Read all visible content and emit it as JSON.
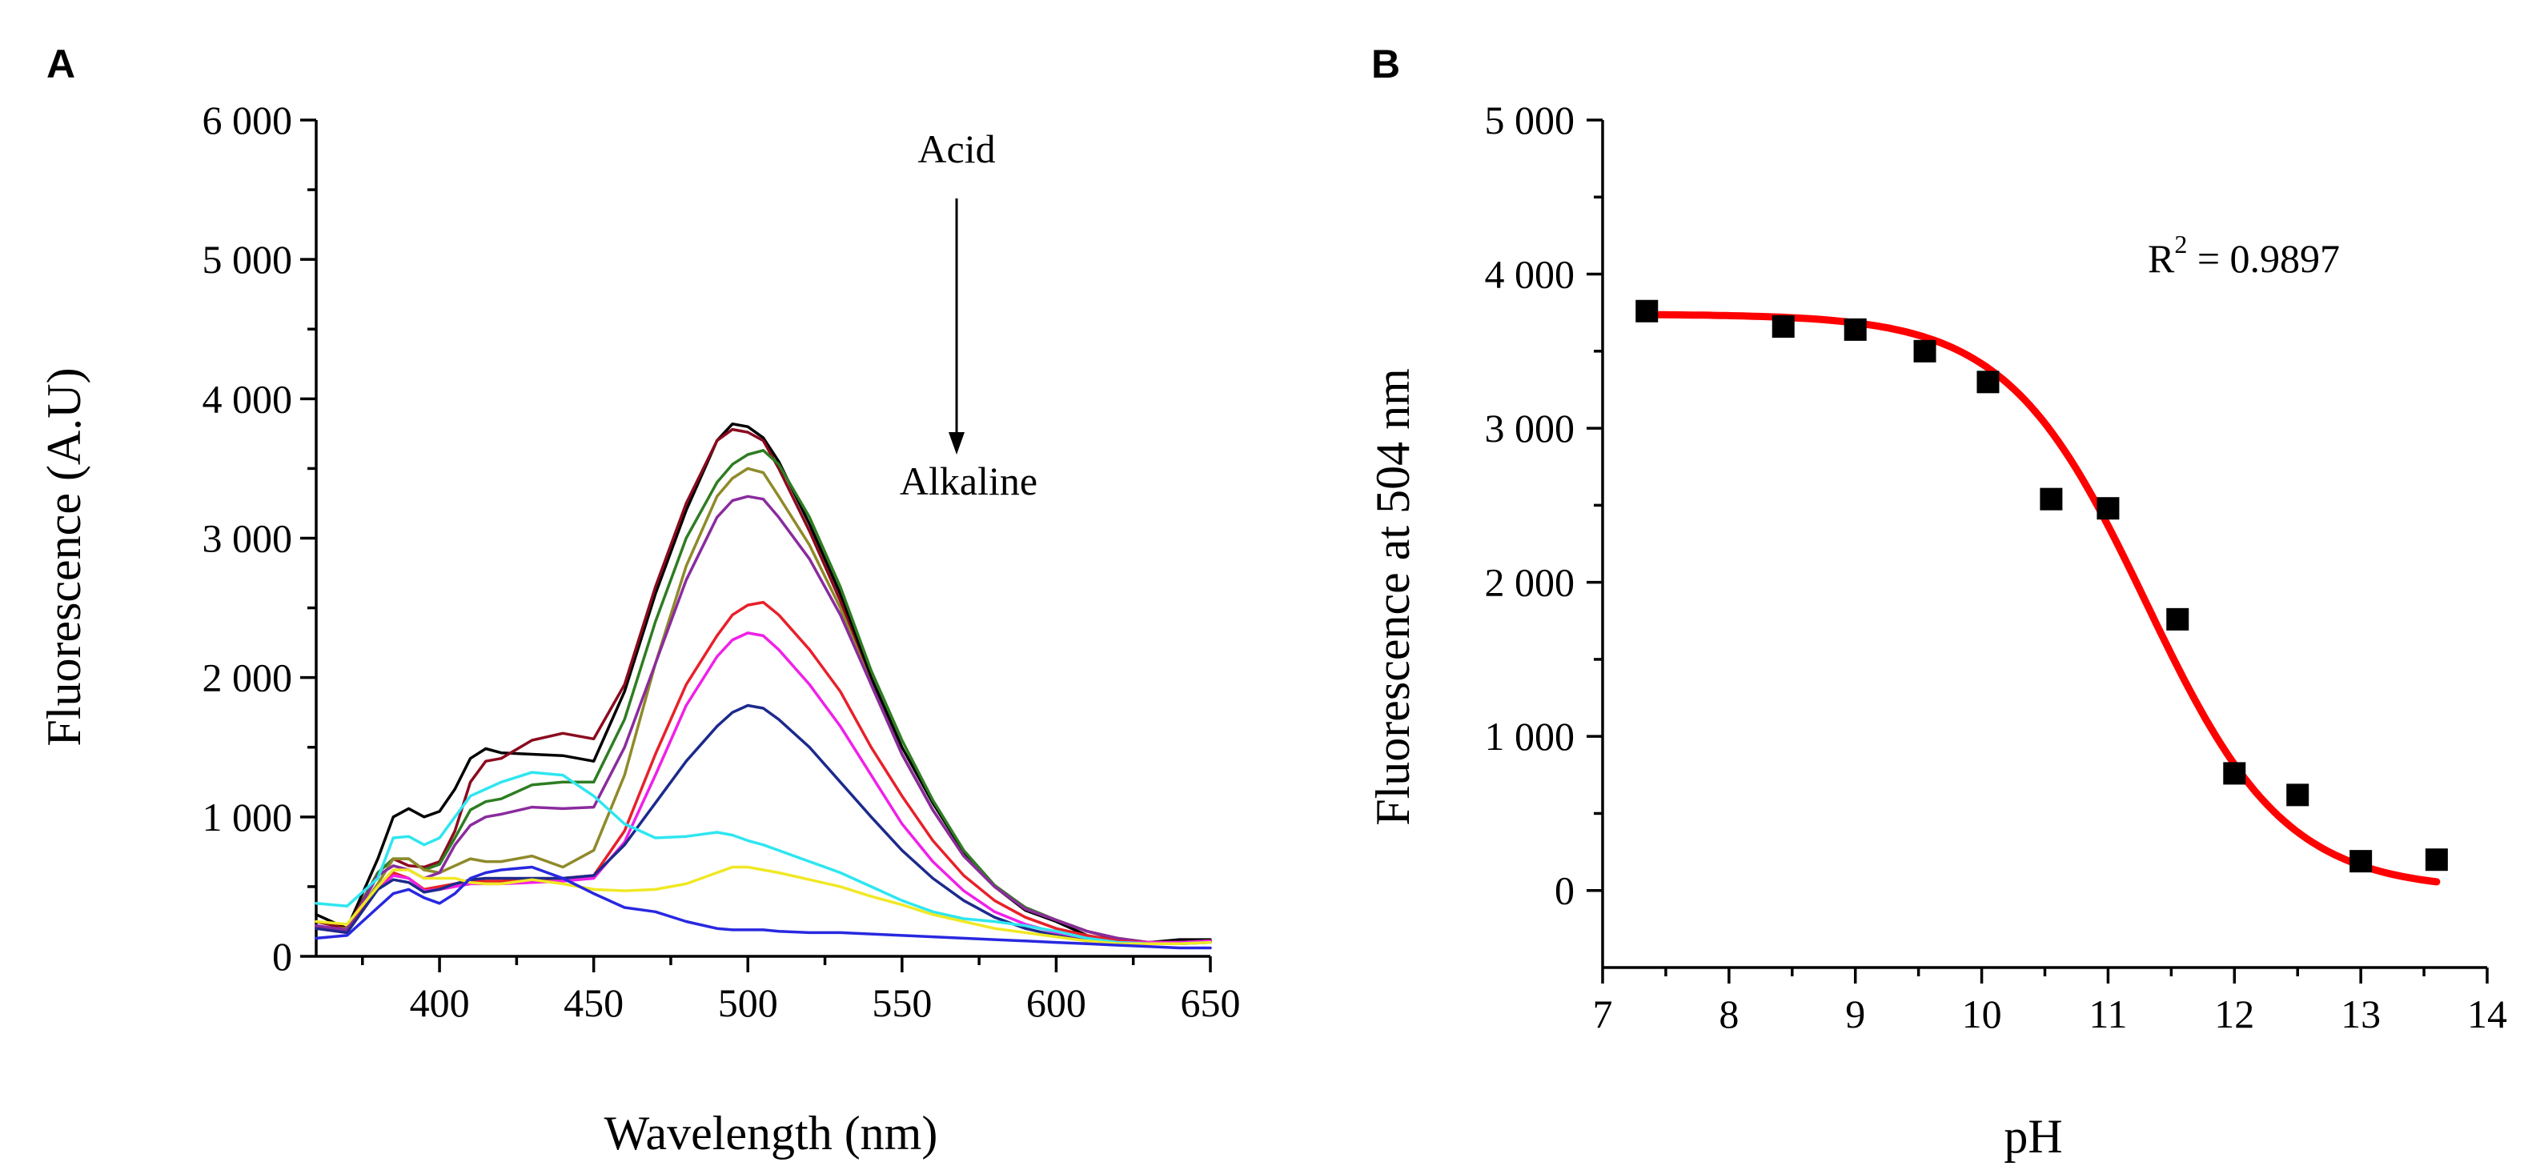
{
  "chart_data": [
    {
      "panel_label": "A",
      "type": "line",
      "xlabel": "Wavelength (nm)",
      "ylabel": "Fluorescence (A.U)",
      "xlim": [
        360,
        650
      ],
      "ylim": [
        0,
        6000
      ],
      "xticks": [
        400,
        450,
        500,
        550,
        600,
        650
      ],
      "yticks": [
        0,
        1000,
        2000,
        3000,
        4000,
        5000,
        6000
      ],
      "xtick_labels": [
        "400",
        "450",
        "500",
        "550",
        "600",
        "650"
      ],
      "ytick_labels": [
        "0",
        "1 000",
        "2 000",
        "3 000",
        "4 000",
        "5 000",
        "6 000"
      ],
      "annotation_top": "Acid",
      "annotation_bottom": "Alkaline",
      "series": [
        {
          "name": "black",
          "color": "#000000",
          "x": [
            360,
            370,
            380,
            385,
            390,
            395,
            400,
            405,
            410,
            415,
            420,
            430,
            440,
            450,
            460,
            470,
            480,
            490,
            495,
            500,
            505,
            510,
            520,
            530,
            540,
            550,
            560,
            570,
            580,
            590,
            600,
            610,
            620,
            630,
            640,
            650
          ],
          "values": [
            300,
            200,
            700,
            1000,
            1060,
            1000,
            1040,
            1200,
            1420,
            1490,
            1460,
            1450,
            1440,
            1400,
            1900,
            2600,
            3200,
            3700,
            3820,
            3800,
            3720,
            3550,
            3100,
            2600,
            2000,
            1500,
            1100,
            750,
            500,
            330,
            250,
            150,
            100,
            100,
            120,
            120
          ]
        },
        {
          "name": "dark red",
          "color": "#8b0a1e",
          "x": [
            360,
            370,
            380,
            385,
            390,
            395,
            400,
            405,
            410,
            415,
            420,
            430,
            440,
            450,
            460,
            470,
            480,
            490,
            495,
            500,
            505,
            510,
            520,
            530,
            540,
            550,
            560,
            570,
            580,
            590,
            600,
            610,
            620,
            630,
            640,
            650
          ],
          "values": [
            250,
            200,
            600,
            700,
            650,
            640,
            680,
            900,
            1250,
            1400,
            1420,
            1550,
            1600,
            1560,
            1950,
            2650,
            3250,
            3700,
            3780,
            3760,
            3700,
            3500,
            3050,
            2550,
            1950,
            1450,
            1050,
            720,
            500,
            350,
            260,
            180,
            120,
            100,
            100,
            110
          ]
        },
        {
          "name": "green",
          "color": "#2e7d22",
          "x": [
            360,
            370,
            380,
            385,
            390,
            395,
            400,
            405,
            410,
            415,
            420,
            430,
            440,
            450,
            460,
            470,
            480,
            490,
            495,
            500,
            505,
            510,
            520,
            530,
            540,
            550,
            560,
            570,
            580,
            590,
            600,
            610,
            620,
            630,
            640,
            650
          ],
          "values": [
            220,
            180,
            600,
            700,
            700,
            620,
            660,
            850,
            1050,
            1110,
            1130,
            1230,
            1250,
            1250,
            1700,
            2400,
            3000,
            3400,
            3530,
            3600,
            3630,
            3530,
            3150,
            2650,
            2050,
            1550,
            1120,
            760,
            510,
            350,
            260,
            180,
            130,
            100,
            100,
            110
          ]
        },
        {
          "name": "olive",
          "color": "#8f8a2a",
          "x": [
            360,
            370,
            380,
            385,
            390,
            395,
            400,
            405,
            410,
            415,
            420,
            430,
            440,
            450,
            460,
            470,
            480,
            490,
            495,
            500,
            505,
            510,
            520,
            530,
            540,
            550,
            560,
            570,
            580,
            590,
            600,
            610,
            620,
            630,
            640,
            650
          ],
          "values": [
            200,
            200,
            520,
            700,
            700,
            620,
            600,
            650,
            700,
            680,
            680,
            720,
            640,
            760,
            1300,
            2100,
            2800,
            3300,
            3430,
            3500,
            3470,
            3300,
            2950,
            2500,
            1950,
            1450,
            1050,
            720,
            500,
            340,
            260,
            180,
            130,
            100,
            100,
            110
          ]
        },
        {
          "name": "purple",
          "color": "#8a2b9e",
          "x": [
            360,
            370,
            380,
            385,
            390,
            395,
            400,
            405,
            410,
            415,
            420,
            430,
            440,
            450,
            460,
            470,
            480,
            490,
            495,
            500,
            505,
            510,
            520,
            530,
            540,
            550,
            560,
            570,
            580,
            590,
            600,
            610,
            620,
            630,
            640,
            650
          ],
          "values": [
            220,
            190,
            580,
            650,
            620,
            560,
            600,
            800,
            940,
            1000,
            1020,
            1070,
            1060,
            1070,
            1500,
            2100,
            2700,
            3150,
            3270,
            3300,
            3280,
            3150,
            2850,
            2450,
            1950,
            1450,
            1050,
            720,
            500,
            340,
            260,
            180,
            130,
            100,
            100,
            110
          ]
        },
        {
          "name": "red",
          "color": "#e8202a",
          "x": [
            360,
            370,
            380,
            385,
            390,
            395,
            400,
            405,
            410,
            415,
            420,
            430,
            440,
            450,
            460,
            470,
            480,
            490,
            495,
            500,
            505,
            510,
            520,
            530,
            540,
            550,
            560,
            570,
            580,
            590,
            600,
            610,
            620,
            630,
            640,
            650
          ],
          "values": [
            200,
            170,
            500,
            600,
            560,
            480,
            500,
            520,
            540,
            540,
            540,
            550,
            560,
            580,
            900,
            1450,
            1950,
            2300,
            2450,
            2520,
            2540,
            2450,
            2200,
            1900,
            1500,
            1150,
            830,
            580,
            400,
            280,
            200,
            150,
            110,
            100,
            100,
            110
          ]
        },
        {
          "name": "magenta",
          "color": "#f020e8",
          "x": [
            360,
            370,
            380,
            385,
            390,
            395,
            400,
            405,
            410,
            415,
            420,
            430,
            440,
            450,
            460,
            470,
            480,
            490,
            495,
            500,
            505,
            510,
            520,
            530,
            540,
            550,
            560,
            570,
            580,
            590,
            600,
            610,
            620,
            630,
            640,
            650
          ],
          "values": [
            200,
            170,
            480,
            580,
            560,
            470,
            480,
            500,
            520,
            520,
            520,
            530,
            540,
            560,
            820,
            1300,
            1800,
            2150,
            2270,
            2320,
            2300,
            2200,
            1950,
            1650,
            1300,
            950,
            680,
            470,
            320,
            230,
            170,
            130,
            100,
            100,
            100,
            110
          ]
        },
        {
          "name": "navy",
          "color": "#1c2a8c",
          "x": [
            360,
            370,
            380,
            385,
            390,
            395,
            400,
            405,
            410,
            415,
            420,
            430,
            440,
            450,
            460,
            470,
            480,
            490,
            495,
            500,
            505,
            510,
            520,
            530,
            540,
            550,
            560,
            570,
            580,
            590,
            600,
            610,
            620,
            630,
            640,
            650
          ],
          "values": [
            200,
            170,
            480,
            550,
            530,
            460,
            480,
            520,
            550,
            560,
            560,
            560,
            560,
            580,
            800,
            1100,
            1400,
            1650,
            1750,
            1800,
            1780,
            1700,
            1500,
            1250,
            1000,
            760,
            560,
            400,
            280,
            200,
            150,
            110,
            100,
            90,
            90,
            100
          ]
        },
        {
          "name": "cyan",
          "color": "#2ee6f0",
          "x": [
            360,
            370,
            380,
            385,
            390,
            395,
            400,
            405,
            410,
            415,
            420,
            430,
            440,
            450,
            460,
            470,
            480,
            490,
            495,
            500,
            505,
            510,
            520,
            530,
            540,
            550,
            560,
            570,
            580,
            590,
            600,
            610,
            620,
            630,
            640,
            650
          ],
          "values": [
            380,
            360,
            560,
            850,
            860,
            800,
            850,
            1000,
            1150,
            1200,
            1250,
            1320,
            1300,
            1150,
            950,
            850,
            860,
            890,
            870,
            830,
            800,
            760,
            680,
            600,
            500,
            400,
            320,
            270,
            250,
            220,
            180,
            130,
            100,
            90,
            90,
            100
          ]
        },
        {
          "name": "yellow",
          "color": "#f0e824",
          "x": [
            360,
            370,
            380,
            385,
            390,
            395,
            400,
            405,
            410,
            415,
            420,
            430,
            440,
            450,
            460,
            470,
            480,
            490,
            495,
            500,
            505,
            510,
            520,
            530,
            540,
            550,
            560,
            570,
            580,
            590,
            600,
            610,
            620,
            630,
            640,
            650
          ],
          "values": [
            250,
            230,
            500,
            620,
            620,
            560,
            560,
            560,
            530,
            520,
            520,
            550,
            520,
            480,
            470,
            480,
            520,
            600,
            640,
            640,
            620,
            600,
            550,
            500,
            430,
            370,
            300,
            250,
            200,
            170,
            140,
            110,
            90,
            90,
            90,
            100
          ]
        },
        {
          "name": "blue",
          "color": "#2828e0",
          "x": [
            360,
            370,
            380,
            385,
            390,
            395,
            400,
            405,
            410,
            415,
            420,
            430,
            440,
            450,
            460,
            470,
            480,
            490,
            495,
            500,
            505,
            510,
            520,
            530,
            540,
            550,
            560,
            570,
            580,
            590,
            600,
            610,
            620,
            630,
            640,
            650
          ],
          "values": [
            130,
            150,
            350,
            450,
            480,
            420,
            380,
            450,
            560,
            600,
            620,
            640,
            560,
            450,
            350,
            320,
            250,
            200,
            190,
            190,
            190,
            180,
            170,
            170,
            160,
            150,
            140,
            130,
            120,
            110,
            100,
            90,
            80,
            70,
            60,
            60
          ]
        }
      ]
    },
    {
      "panel_label": "B",
      "type": "scatter",
      "xlabel": "pH",
      "ylabel": "Fluorescence at 504 nm",
      "xlim": [
        7,
        14
      ],
      "ylim": [
        -500,
        5000
      ],
      "xticks": [
        7,
        8,
        9,
        10,
        11,
        12,
        13,
        14
      ],
      "yticks": [
        0,
        1000,
        2000,
        3000,
        4000,
        5000
      ],
      "xtick_labels": [
        "7",
        "8",
        "9",
        "10",
        "11",
        "12",
        "13",
        "14"
      ],
      "ytick_labels": [
        "0",
        "1 000",
        "2 000",
        "3 000",
        "4 000",
        "5 000"
      ],
      "r2_label": "R",
      "r2_exponent": "2",
      "r2_value": " = 0.9897",
      "points": {
        "x": [
          7.35,
          8.43,
          9.0,
          9.55,
          10.05,
          10.55,
          11.0,
          11.55,
          12.0,
          12.5,
          13.0,
          13.6
        ],
        "y": [
          3760,
          3660,
          3640,
          3500,
          3300,
          2540,
          2480,
          1760,
          760,
          620,
          190,
          200
        ]
      },
      "fit": {
        "model": "sigmoid",
        "color": "#ff0000",
        "top": 3740,
        "bottom": 0,
        "midpoint": 11.3,
        "slope": 0.55,
        "x_range": [
          7.35,
          13.6
        ]
      }
    }
  ]
}
